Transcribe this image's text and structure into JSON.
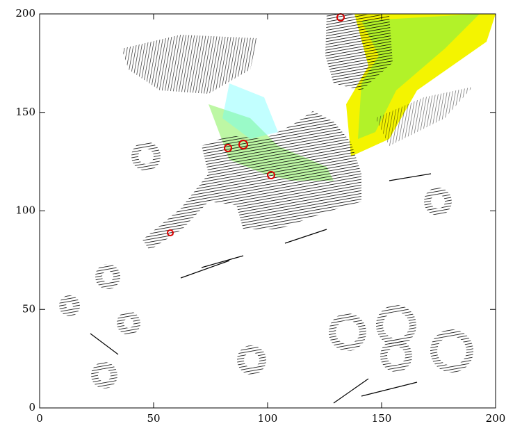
{
  "chart_data": {
    "type": "vector-field",
    "xlim": [
      0,
      200
    ],
    "ylim": [
      0,
      200
    ],
    "xticks": [
      0,
      50,
      100,
      150,
      200
    ],
    "yticks": [
      0,
      50,
      100,
      150,
      200
    ]
  }
}
